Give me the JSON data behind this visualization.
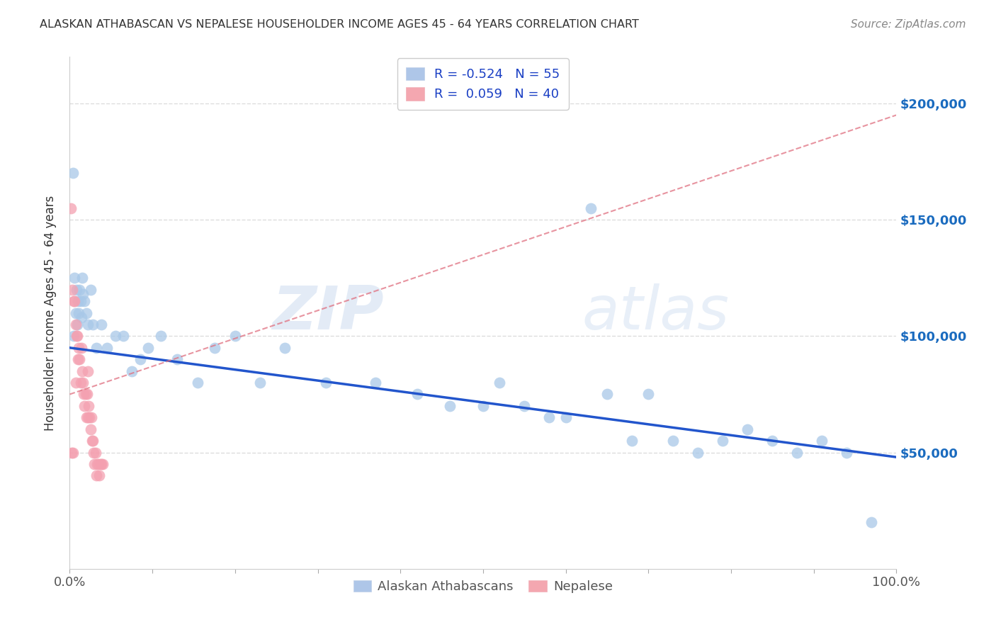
{
  "title": "ALASKAN ATHABASCAN VS NEPALESE HOUSEHOLDER INCOME AGES 45 - 64 YEARS CORRELATION CHART",
  "source": "Source: ZipAtlas.com",
  "ylabel": "Householder Income Ages 45 - 64 years",
  "legend_entries": [
    {
      "label": "R = -0.524   N = 55",
      "color": "#aec6e8"
    },
    {
      "label": "R =  0.059   N = 40",
      "color": "#f4a7b0"
    }
  ],
  "legend_bottom": [
    "Alaskan Athabascans",
    "Nepalese"
  ],
  "y_ticks_right": [
    "$50,000",
    "$100,000",
    "$150,000",
    "$200,000"
  ],
  "y_ticks_right_vals": [
    50000,
    100000,
    150000,
    200000
  ],
  "watermark": "ZIPatlas",
  "blue_scatter": {
    "x": [
      0.004,
      0.005,
      0.006,
      0.007,
      0.008,
      0.009,
      0.01,
      0.011,
      0.012,
      0.013,
      0.014,
      0.015,
      0.016,
      0.018,
      0.02,
      0.022,
      0.025,
      0.028,
      0.032,
      0.038,
      0.045,
      0.055,
      0.065,
      0.075,
      0.085,
      0.095,
      0.11,
      0.13,
      0.155,
      0.175,
      0.2,
      0.23,
      0.26,
      0.31,
      0.37,
      0.42,
      0.46,
      0.5,
      0.52,
      0.55,
      0.58,
      0.6,
      0.63,
      0.65,
      0.68,
      0.7,
      0.73,
      0.76,
      0.79,
      0.82,
      0.85,
      0.88,
      0.91,
      0.94,
      0.97
    ],
    "y": [
      170000,
      100000,
      125000,
      110000,
      120000,
      105000,
      115000,
      110000,
      120000,
      115000,
      108000,
      125000,
      118000,
      115000,
      110000,
      105000,
      120000,
      105000,
      95000,
      105000,
      95000,
      100000,
      100000,
      85000,
      90000,
      95000,
      100000,
      90000,
      80000,
      95000,
      100000,
      80000,
      95000,
      80000,
      80000,
      75000,
      70000,
      70000,
      80000,
      70000,
      65000,
      65000,
      155000,
      75000,
      55000,
      75000,
      55000,
      50000,
      55000,
      60000,
      55000,
      50000,
      55000,
      50000,
      20000
    ]
  },
  "pink_scatter": {
    "x": [
      0.001,
      0.002,
      0.003,
      0.004,
      0.005,
      0.006,
      0.007,
      0.007,
      0.008,
      0.009,
      0.01,
      0.011,
      0.012,
      0.013,
      0.014,
      0.015,
      0.016,
      0.017,
      0.018,
      0.019,
      0.02,
      0.021,
      0.022,
      0.022,
      0.023,
      0.024,
      0.025,
      0.026,
      0.027,
      0.028,
      0.029,
      0.03,
      0.031,
      0.032,
      0.033,
      0.035,
      0.036,
      0.037,
      0.038,
      0.04
    ],
    "y": [
      155000,
      50000,
      120000,
      50000,
      115000,
      115000,
      105000,
      80000,
      100000,
      100000,
      90000,
      95000,
      90000,
      80000,
      95000,
      85000,
      80000,
      75000,
      70000,
      75000,
      65000,
      75000,
      65000,
      85000,
      70000,
      65000,
      60000,
      65000,
      55000,
      55000,
      50000,
      45000,
      50000,
      40000,
      45000,
      45000,
      40000,
      45000,
      45000,
      45000
    ]
  },
  "blue_line_x": [
    0.0,
    1.0
  ],
  "blue_line_y": [
    95000,
    48000
  ],
  "pink_line_x": [
    0.0,
    1.0
  ],
  "pink_line_y": [
    75000,
    195000
  ],
  "title_color": "#333333",
  "source_color": "#888888",
  "blue_color": "#a8c8e8",
  "pink_color": "#f4a0b0",
  "blue_line_color": "#2255cc",
  "pink_line_color": "#e07080",
  "legend_text_color": "#1a3fc4",
  "grid_color": "#dddddd",
  "right_axis_color": "#1a6bbf",
  "background": "#ffffff",
  "ylim": [
    0,
    220000
  ],
  "xlim": [
    0.0,
    1.0
  ]
}
